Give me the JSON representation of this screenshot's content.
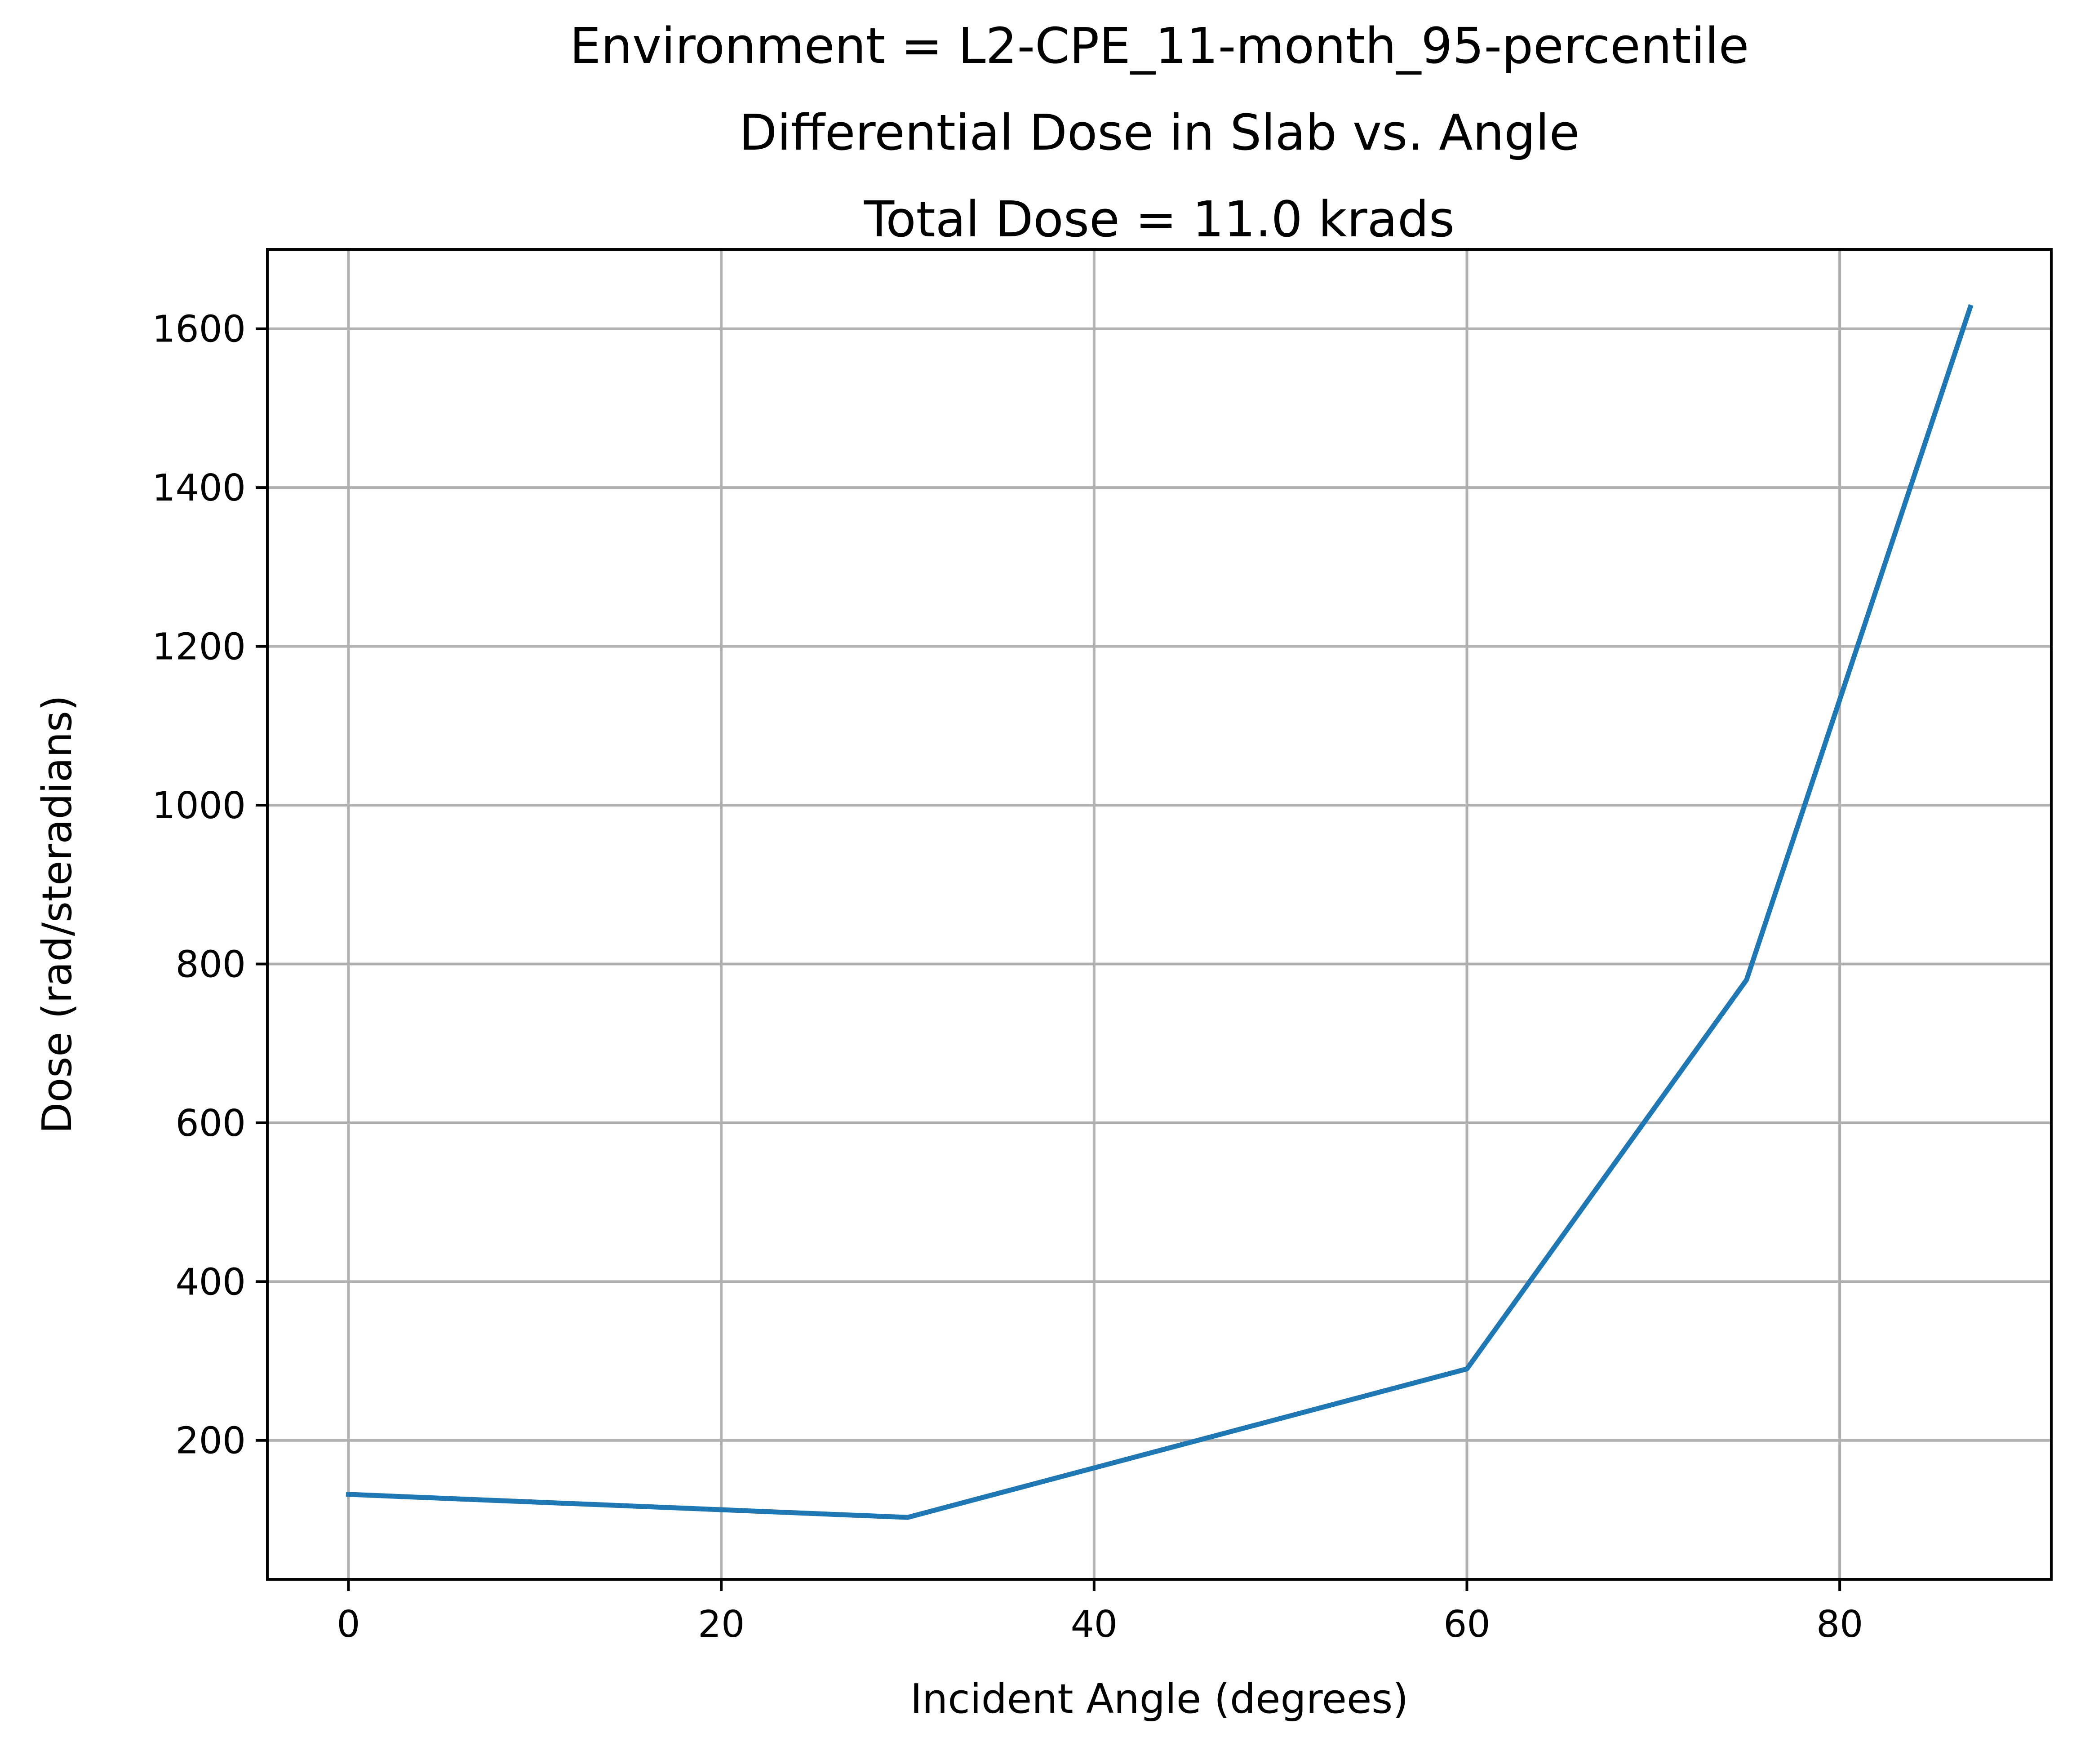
{
  "chart_data": {
    "type": "line",
    "title_lines": [
      "Environment = L2-CPE_11-month_95-percentile",
      "Differential Dose in Slab vs. Angle",
      "Total Dose = 11.0 krads"
    ],
    "xlabel": "Incident Angle (degrees)",
    "ylabel": "Dose (rad/steradians)",
    "xlim": [
      -4.35,
      91.35
    ],
    "ylim": [
      25,
      1700
    ],
    "xticks": [
      0,
      20,
      40,
      60,
      80
    ],
    "yticks": [
      200,
      400,
      600,
      800,
      1000,
      1200,
      1400,
      1600
    ],
    "grid": true,
    "series": [
      {
        "color": "#1f77b4",
        "x": [
          0,
          30,
          60,
          75,
          87
        ],
        "y": [
          132,
          103,
          290,
          780,
          1627
        ]
      }
    ]
  }
}
